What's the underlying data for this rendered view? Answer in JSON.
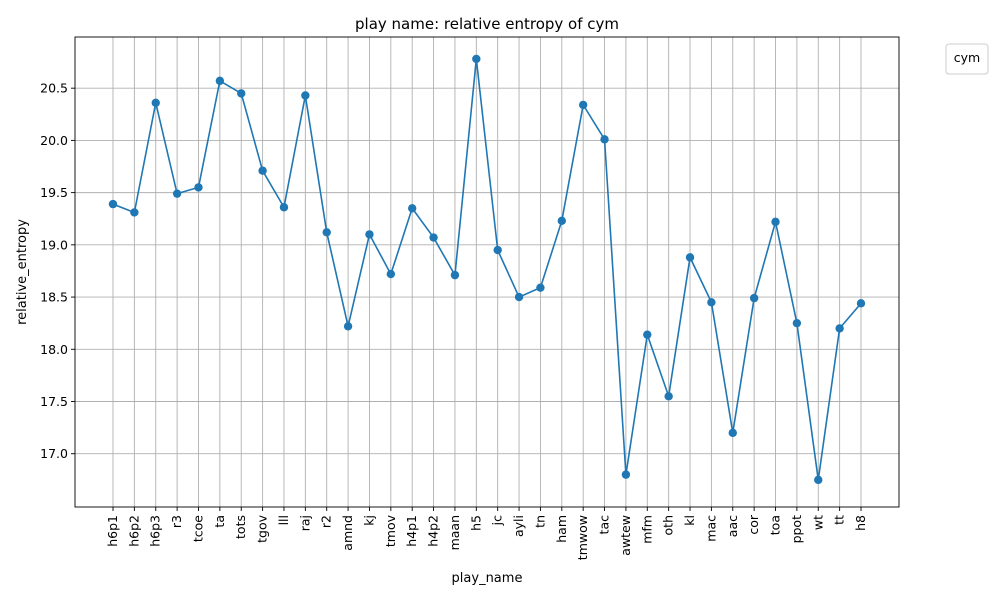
{
  "chart_data": {
    "type": "line",
    "title": "play name: relative entropy of cym",
    "xlabel": "play_name",
    "ylabel": "relative_entropy",
    "categories": [
      "h6p1",
      "h6p2",
      "h6p3",
      "r3",
      "tcoe",
      "ta",
      "tots",
      "tgov",
      "lll",
      "raj",
      "r2",
      "amnd",
      "kj",
      "tmov",
      "h4p1",
      "h4p2",
      "maan",
      "h5",
      "jc",
      "ayli",
      "tn",
      "ham",
      "tmwow",
      "tac",
      "awtew",
      "mfm",
      "oth",
      "kl",
      "mac",
      "aac",
      "cor",
      "toa",
      "ppot",
      "wt",
      "tt",
      "h8"
    ],
    "series": [
      {
        "values": [
          19.39,
          19.31,
          20.36,
          19.49,
          19.55,
          20.57,
          20.45,
          19.71,
          19.36,
          20.43,
          19.12,
          18.22,
          19.1,
          18.72,
          19.35,
          19.07,
          18.71,
          20.78,
          18.95,
          18.5,
          18.59,
          19.23,
          20.34,
          20.01,
          16.8,
          18.14,
          17.55,
          18.88,
          18.45,
          17.2,
          18.49,
          19.22,
          18.25,
          16.75,
          18.2,
          18.44
        ],
        "color": "#1f77b4"
      }
    ],
    "ylim": [
      16.49,
      20.99
    ],
    "yticks": [
      17.0,
      17.5,
      18.0,
      18.5,
      19.0,
      19.5,
      20.0,
      20.5
    ],
    "grid": true,
    "legend": {
      "title": "cym",
      "placement": "outside-top-right"
    }
  }
}
